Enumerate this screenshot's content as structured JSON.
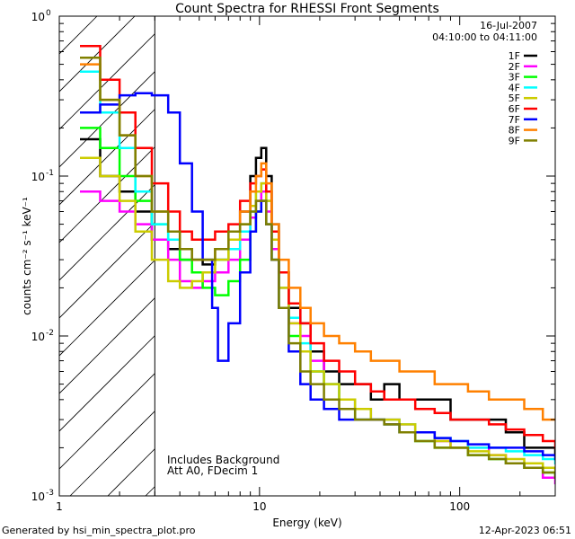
{
  "chart_data": {
    "type": "line",
    "title": "Count Spectra for RHESSI Front Segments",
    "xlabel": "Energy (keV)",
    "ylabel": "counts cm⁻² s⁻¹ keV⁻¹",
    "xscale": "log",
    "yscale": "log",
    "xlim": [
      1,
      300
    ],
    "ylim": [
      0.001,
      1.0
    ],
    "x_tick_labels": [
      {
        "value": 1,
        "label": "1"
      },
      {
        "value": 10,
        "label": "10"
      },
      {
        "value": 100,
        "label": "100"
      }
    ],
    "y_tick_labels": [
      {
        "value": 1.0,
        "base": "10",
        "exp": "0"
      },
      {
        "value": 0.1,
        "base": "10",
        "exp": "-1"
      },
      {
        "value": 0.01,
        "base": "10",
        "exp": "-2"
      },
      {
        "value": 0.001,
        "base": "10",
        "exp": "-3"
      }
    ],
    "hatched_region_xmax": 3.0,
    "legend_position": "top-right",
    "legend_header": [
      "16-Jul-2007",
      "04:10:00 to 04:11:00"
    ],
    "annotations": [
      "Includes Background",
      "Att A0, FDecim 1"
    ],
    "series": [
      {
        "name": "1F",
        "color": "#000000",
        "x": [
          1.35,
          1.6,
          2.0,
          2.4,
          2.9,
          3.5,
          4.0,
          4.6,
          5.2,
          6.0,
          7.0,
          8.0,
          9.0,
          9.6,
          10.2,
          10.8,
          11.5,
          12.5,
          14,
          16,
          18,
          21,
          25,
          30,
          36,
          42,
          50,
          60,
          75,
          90,
          110,
          140,
          170,
          210,
          260,
          300
        ],
        "y": [
          0.17,
          0.1,
          0.08,
          0.06,
          0.04,
          0.035,
          0.03,
          0.03,
          0.028,
          0.03,
          0.04,
          0.06,
          0.1,
          0.13,
          0.15,
          0.1,
          0.05,
          0.025,
          0.015,
          0.012,
          0.008,
          0.006,
          0.005,
          0.005,
          0.004,
          0.005,
          0.004,
          0.004,
          0.004,
          0.003,
          0.003,
          0.003,
          0.0025,
          0.002,
          0.002,
          0.0018
        ]
      },
      {
        "name": "2F",
        "color": "#ff00ff",
        "x": [
          1.35,
          1.6,
          2.0,
          2.4,
          2.9,
          3.5,
          4.0,
          4.6,
          5.2,
          6.0,
          7.0,
          8.0,
          9.0,
          9.6,
          10.2,
          10.8,
          11.5,
          12.5,
          14,
          16,
          18,
          21,
          25,
          30,
          36,
          42,
          50,
          60,
          75,
          90,
          110,
          140,
          170,
          210,
          260,
          300
        ],
        "y": [
          0.08,
          0.07,
          0.06,
          0.05,
          0.04,
          0.03,
          0.022,
          0.02,
          0.022,
          0.025,
          0.03,
          0.04,
          0.055,
          0.07,
          0.08,
          0.06,
          0.035,
          0.02,
          0.012,
          0.01,
          0.007,
          0.005,
          0.004,
          0.0035,
          0.003,
          0.003,
          0.0028,
          0.0025,
          0.0022,
          0.002,
          0.002,
          0.0018,
          0.0016,
          0.0015,
          0.0013,
          0.0012
        ]
      },
      {
        "name": "3F",
        "color": "#00ff00",
        "x": [
          1.35,
          1.6,
          2.0,
          2.4,
          2.9,
          3.5,
          4.0,
          4.6,
          5.2,
          6.0,
          7.0,
          8.0,
          9.0,
          9.6,
          10.2,
          10.8,
          11.5,
          12.5,
          14,
          16,
          18,
          21,
          25,
          30,
          36,
          42,
          50,
          60,
          75,
          90,
          110,
          140,
          170,
          210,
          260,
          300
        ],
        "y": [
          0.2,
          0.15,
          0.1,
          0.07,
          0.05,
          0.04,
          0.03,
          0.025,
          0.02,
          0.018,
          0.022,
          0.03,
          0.045,
          0.06,
          0.07,
          0.05,
          0.03,
          0.015,
          0.01,
          0.008,
          0.006,
          0.005,
          0.004,
          0.003,
          0.003,
          0.0028,
          0.0025,
          0.0022,
          0.002,
          0.002,
          0.0018,
          0.0017,
          0.0016,
          0.0015,
          0.0014,
          0.0013
        ]
      },
      {
        "name": "4F",
        "color": "#00ffff",
        "x": [
          1.35,
          1.6,
          2.0,
          2.4,
          2.9,
          3.5,
          4.0,
          4.6,
          5.2,
          6.0,
          7.0,
          8.0,
          9.0,
          9.6,
          10.2,
          10.8,
          11.5,
          12.5,
          14,
          16,
          18,
          21,
          25,
          30,
          36,
          42,
          50,
          60,
          75,
          90,
          110,
          140,
          170,
          210,
          260,
          300
        ],
        "y": [
          0.45,
          0.25,
          0.15,
          0.08,
          0.05,
          0.04,
          0.035,
          0.03,
          0.03,
          0.03,
          0.035,
          0.045,
          0.06,
          0.08,
          0.09,
          0.07,
          0.04,
          0.02,
          0.013,
          0.009,
          0.006,
          0.005,
          0.004,
          0.0035,
          0.003,
          0.003,
          0.0028,
          0.0025,
          0.0023,
          0.0022,
          0.002,
          0.002,
          0.0019,
          0.0018,
          0.0017,
          0.0016
        ]
      },
      {
        "name": "5F",
        "color": "#cccc00",
        "x": [
          1.35,
          1.6,
          2.0,
          2.4,
          2.9,
          3.5,
          4.0,
          4.6,
          5.2,
          6.0,
          7.0,
          8.0,
          9.0,
          9.6,
          10.2,
          10.8,
          11.5,
          12.5,
          14,
          16,
          18,
          21,
          25,
          30,
          36,
          42,
          50,
          60,
          75,
          90,
          110,
          140,
          170,
          210,
          260,
          300
        ],
        "y": [
          0.13,
          0.1,
          0.07,
          0.045,
          0.03,
          0.022,
          0.02,
          0.022,
          0.025,
          0.03,
          0.04,
          0.05,
          0.065,
          0.08,
          0.09,
          0.07,
          0.04,
          0.02,
          0.012,
          0.008,
          0.006,
          0.005,
          0.004,
          0.0035,
          0.003,
          0.003,
          0.0028,
          0.0025,
          0.0022,
          0.002,
          0.0019,
          0.0018,
          0.0017,
          0.0016,
          0.0015,
          0.0014
        ]
      },
      {
        "name": "6F",
        "color": "#ff0000",
        "x": [
          1.35,
          1.6,
          2.0,
          2.4,
          2.9,
          3.5,
          4.0,
          4.6,
          5.2,
          6.0,
          7.0,
          8.0,
          9.0,
          9.6,
          10.2,
          10.8,
          11.5,
          12.5,
          14,
          16,
          18,
          21,
          25,
          30,
          36,
          42,
          50,
          60,
          75,
          90,
          110,
          140,
          170,
          210,
          260,
          300
        ],
        "y": [
          0.65,
          0.4,
          0.25,
          0.15,
          0.09,
          0.06,
          0.045,
          0.04,
          0.04,
          0.045,
          0.05,
          0.07,
          0.09,
          0.1,
          0.11,
          0.08,
          0.045,
          0.025,
          0.016,
          0.012,
          0.009,
          0.007,
          0.006,
          0.005,
          0.0045,
          0.004,
          0.004,
          0.0035,
          0.0033,
          0.003,
          0.003,
          0.0028,
          0.0026,
          0.0024,
          0.0022,
          0.002
        ]
      },
      {
        "name": "7F",
        "color": "#0000ff",
        "x": [
          1.35,
          1.6,
          2.0,
          2.4,
          2.9,
          3.5,
          4.0,
          4.6,
          5.2,
          5.8,
          6.2,
          7.0,
          8.0,
          9.0,
          9.6,
          10.2,
          10.8,
          11.5,
          12.5,
          14,
          16,
          18,
          21,
          25,
          30,
          36,
          42,
          50,
          60,
          75,
          90,
          110,
          140,
          170,
          210,
          260,
          300
        ],
        "y": [
          0.25,
          0.28,
          0.32,
          0.33,
          0.32,
          0.25,
          0.12,
          0.06,
          0.03,
          0.015,
          0.007,
          0.012,
          0.025,
          0.045,
          0.06,
          0.07,
          0.05,
          0.03,
          0.015,
          0.008,
          0.005,
          0.004,
          0.0035,
          0.003,
          0.003,
          0.003,
          0.0028,
          0.0025,
          0.0025,
          0.0023,
          0.0022,
          0.0021,
          0.002,
          0.002,
          0.0019,
          0.0018,
          0.0017
        ]
      },
      {
        "name": "8F",
        "color": "#ff8000",
        "x": [
          1.35,
          1.6,
          2.0,
          2.4,
          2.9,
          3.5,
          4.0,
          4.6,
          5.2,
          6.0,
          7.0,
          8.0,
          9.0,
          9.6,
          10.2,
          10.8,
          11.5,
          12.5,
          14,
          16,
          18,
          21,
          25,
          30,
          36,
          42,
          50,
          60,
          75,
          90,
          110,
          140,
          170,
          210,
          260,
          300
        ],
        "y": [
          0.5,
          0.3,
          0.18,
          0.1,
          0.06,
          0.045,
          0.035,
          0.03,
          0.03,
          0.035,
          0.045,
          0.06,
          0.08,
          0.1,
          0.12,
          0.09,
          0.05,
          0.03,
          0.02,
          0.015,
          0.012,
          0.01,
          0.009,
          0.008,
          0.007,
          0.007,
          0.006,
          0.006,
          0.005,
          0.005,
          0.0045,
          0.004,
          0.004,
          0.0035,
          0.003,
          0.003
        ]
      },
      {
        "name": "9F",
        "color": "#808000",
        "x": [
          1.35,
          1.6,
          2.0,
          2.4,
          2.9,
          3.5,
          4.0,
          4.6,
          5.2,
          6.0,
          7.0,
          8.0,
          9.0,
          9.6,
          10.2,
          10.8,
          11.5,
          12.5,
          14,
          16,
          18,
          21,
          25,
          30,
          36,
          42,
          50,
          60,
          75,
          90,
          110,
          140,
          170,
          210,
          260,
          300
        ],
        "y": [
          0.55,
          0.3,
          0.18,
          0.1,
          0.06,
          0.045,
          0.035,
          0.03,
          0.03,
          0.035,
          0.045,
          0.05,
          0.06,
          0.07,
          0.07,
          0.05,
          0.03,
          0.015,
          0.009,
          0.006,
          0.005,
          0.004,
          0.0035,
          0.003,
          0.003,
          0.0028,
          0.0025,
          0.0022,
          0.002,
          0.002,
          0.0018,
          0.0017,
          0.0016,
          0.0015,
          0.0014,
          0.0013
        ]
      }
    ]
  },
  "footer": {
    "generated_by": "Generated by hsi_min_spectra_plot.pro",
    "date": "12-Apr-2023 06:51"
  }
}
